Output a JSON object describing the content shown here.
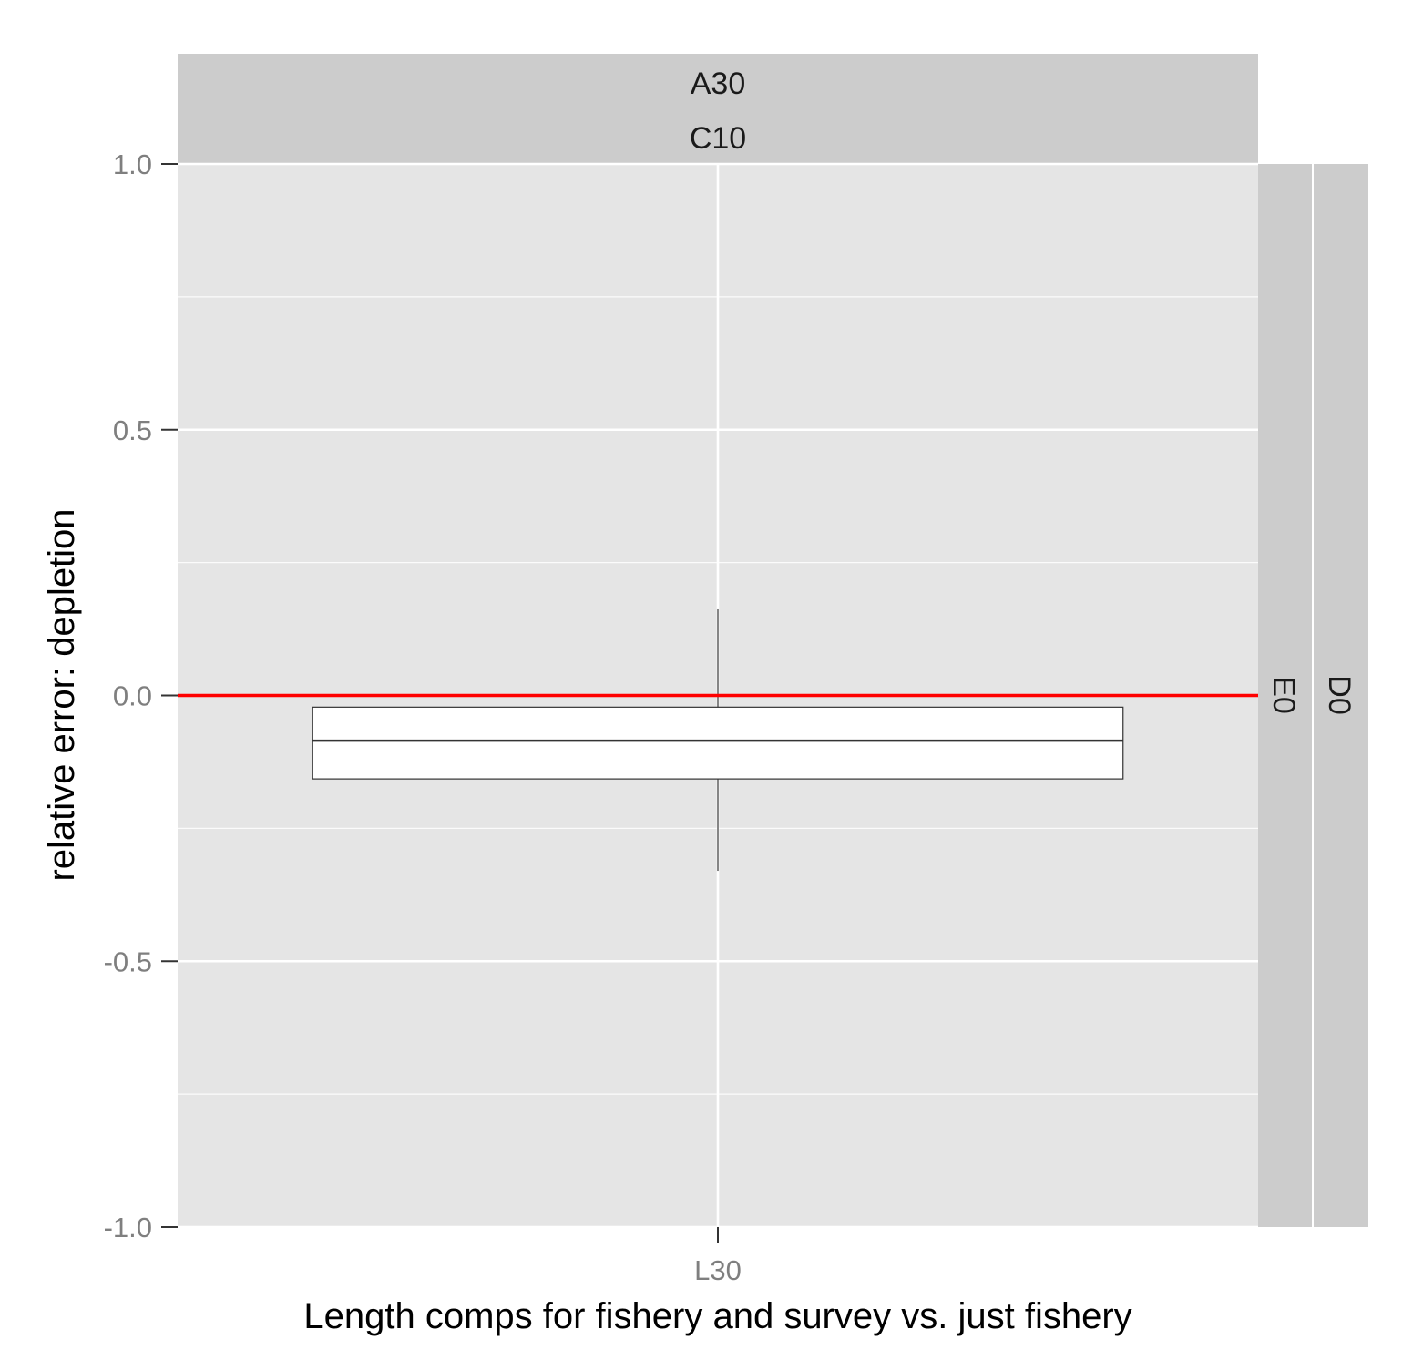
{
  "chart_data": {
    "type": "boxplot",
    "title": "",
    "xlabel": "Length comps for fishery and survey vs. just fishery",
    "ylabel": "relative error: depletion",
    "ylim": [
      -1.0,
      1.0
    ],
    "y_ticks": [
      1.0,
      0.5,
      0.0,
      -0.5,
      -1.0
    ],
    "y_tick_labels": [
      "1.0",
      "0.5",
      "0.0",
      "-0.5",
      "-1.0"
    ],
    "y_minor_ticks": [
      0.75,
      0.25,
      -0.25,
      -0.75
    ],
    "categories": [
      "L30"
    ],
    "boxes": [
      {
        "category": "L30",
        "whisker_low": -0.33,
        "q1": -0.157,
        "median": -0.085,
        "q3": -0.022,
        "whisker_high": 0.162
      }
    ],
    "reference_line": {
      "y": 0.0,
      "color": "#ff0000"
    },
    "facet_top": [
      "A30",
      "C10"
    ],
    "facet_right": [
      "E0",
      "D0"
    ],
    "grid": true,
    "colors": {
      "panel_background": "#e5e5e5",
      "strip_background": "#cccccc",
      "grid": "#ffffff",
      "box_fill": "#ffffff",
      "box_outline": "#333333"
    }
  }
}
